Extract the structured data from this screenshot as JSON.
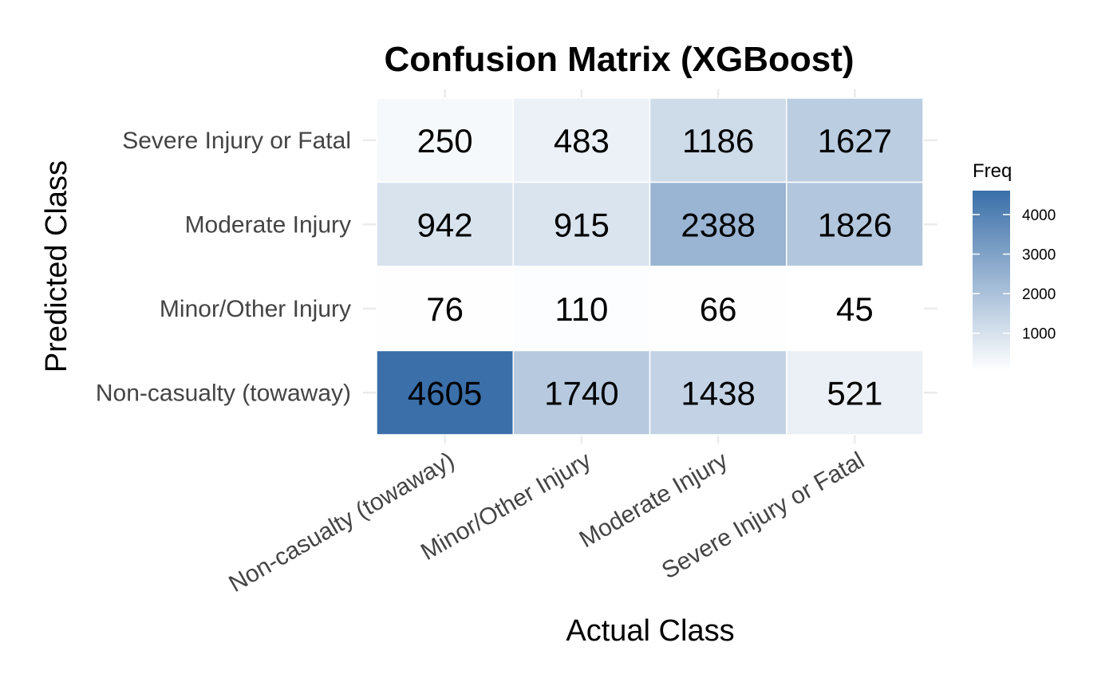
{
  "chart_data": {
    "type": "heatmap",
    "title": "Confusion Matrix (XGBoost)",
    "xlabel": "Actual Class",
    "ylabel": "Predicted Class",
    "x_categories": [
      "Non-casualty (towaway)",
      "Minor/Other Injury",
      "Moderate Injury",
      "Severe Injury or Fatal"
    ],
    "y_categories": [
      "Non-casualty (towaway)",
      "Minor/Other Injury",
      "Moderate Injury",
      "Severe Injury or Fatal"
    ],
    "cells": [
      {
        "actual": "Non-casualty (towaway)",
        "predicted": "Severe Injury or Fatal",
        "value": 250
      },
      {
        "actual": "Minor/Other Injury",
        "predicted": "Severe Injury or Fatal",
        "value": 483
      },
      {
        "actual": "Moderate Injury",
        "predicted": "Severe Injury or Fatal",
        "value": 1186
      },
      {
        "actual": "Severe Injury or Fatal",
        "predicted": "Severe Injury or Fatal",
        "value": 1627
      },
      {
        "actual": "Non-casualty (towaway)",
        "predicted": "Moderate Injury",
        "value": 942
      },
      {
        "actual": "Minor/Other Injury",
        "predicted": "Moderate Injury",
        "value": 915
      },
      {
        "actual": "Moderate Injury",
        "predicted": "Moderate Injury",
        "value": 2388
      },
      {
        "actual": "Severe Injury or Fatal",
        "predicted": "Moderate Injury",
        "value": 1826
      },
      {
        "actual": "Non-casualty (towaway)",
        "predicted": "Minor/Other Injury",
        "value": 76
      },
      {
        "actual": "Minor/Other Injury",
        "predicted": "Minor/Other Injury",
        "value": 110
      },
      {
        "actual": "Moderate Injury",
        "predicted": "Minor/Other Injury",
        "value": 66
      },
      {
        "actual": "Severe Injury or Fatal",
        "predicted": "Minor/Other Injury",
        "value": 45
      },
      {
        "actual": "Non-casualty (towaway)",
        "predicted": "Non-casualty (towaway)",
        "value": 4605
      },
      {
        "actual": "Minor/Other Injury",
        "predicted": "Non-casualty (towaway)",
        "value": 1740
      },
      {
        "actual": "Moderate Injury",
        "predicted": "Non-casualty (towaway)",
        "value": 1438
      },
      {
        "actual": "Severe Injury or Fatal",
        "predicted": "Non-casualty (towaway)",
        "value": 521
      }
    ],
    "legend": {
      "title": "Freq",
      "placement": "right",
      "ticks": [
        1000,
        2000,
        3000,
        4000
      ],
      "range": [
        45,
        4605
      ],
      "low_color": "#ffffff",
      "high_color": "#3a6fa9"
    },
    "grid": true
  }
}
